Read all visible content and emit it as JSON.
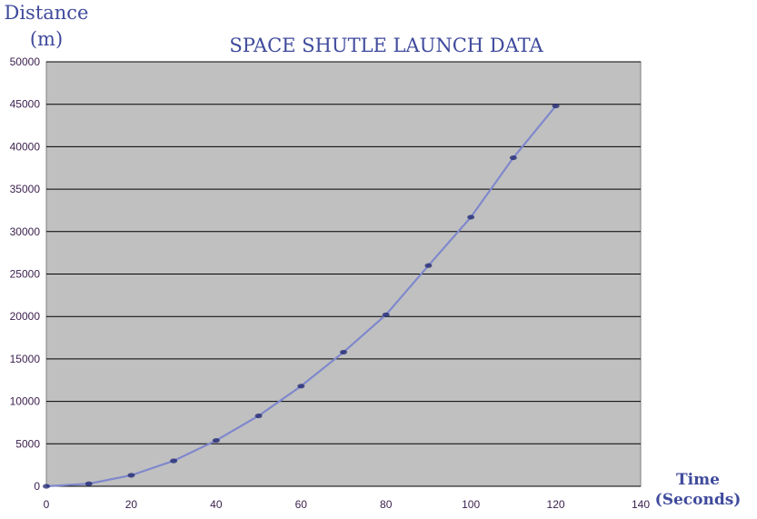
{
  "chart_data": {
    "type": "line",
    "title": "SPACE SHUTLE LAUNCH DATA",
    "ylabel_lines": [
      "Distance",
      "(m)"
    ],
    "xlabel_lines": [
      "Time",
      "(Seconds)"
    ],
    "xlim": [
      0,
      140
    ],
    "ylim": [
      0,
      50000
    ],
    "x_ticks": [
      0,
      20,
      40,
      60,
      80,
      100,
      120,
      140
    ],
    "y_ticks": [
      0,
      5000,
      10000,
      15000,
      20000,
      25000,
      30000,
      35000,
      40000,
      45000,
      50000
    ],
    "grid": true,
    "legend": "none",
    "colors": {
      "plot_bg": "#c0c0c0",
      "line": "#7f88cc",
      "marker": "#1e2470",
      "grid": "#000000"
    },
    "series": [
      {
        "x": [
          0,
          10,
          20,
          30,
          40,
          50,
          60,
          70,
          80,
          90,
          100,
          110,
          120
        ],
        "y": [
          0,
          300,
          1300,
          3000,
          5400,
          8300,
          11800,
          15800,
          20200,
          26000,
          31700,
          38700,
          44800
        ]
      }
    ]
  }
}
